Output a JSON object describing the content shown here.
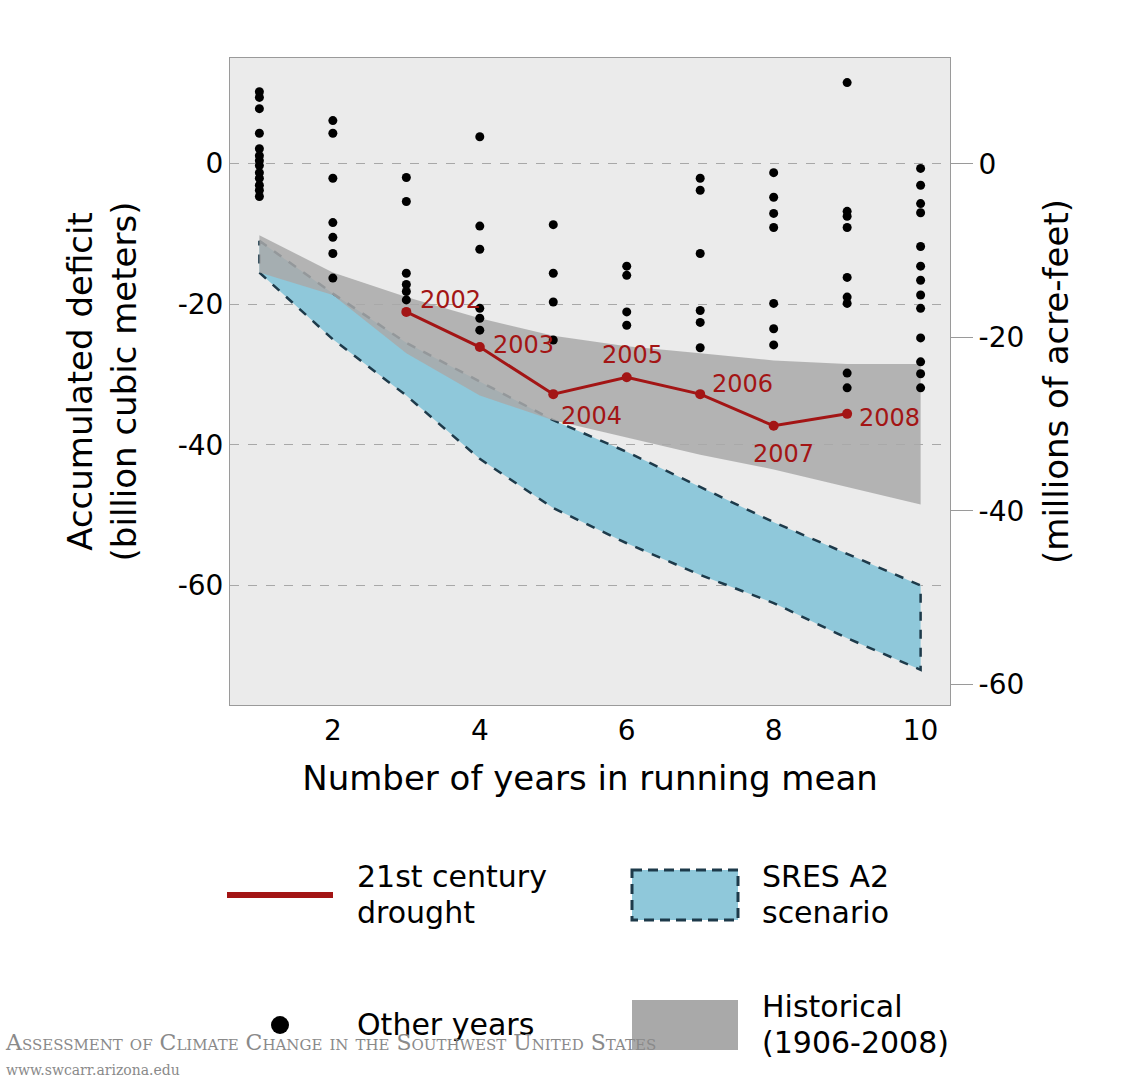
{
  "chart_data": {
    "type": "scatter",
    "x_label": "Number of years in running mean",
    "y_label": [
      "Accumulated deficit",
      "(billion cubic meters)"
    ],
    "y2_label": "(millions of acre-feet)",
    "xlim": [
      0.6,
      10.4
    ],
    "xticks": [
      2,
      4,
      6,
      8,
      10
    ],
    "ylim": [
      -77,
      15
    ],
    "yticks": [
      0,
      -20,
      -40,
      -60
    ],
    "y2lim": [
      -62.4,
      12.2
    ],
    "y2ticks": [
      0,
      -20,
      -40,
      -60
    ],
    "grid": true,
    "legend": "bottom",
    "series": [
      {
        "name": "21st century drought",
        "type": "line",
        "color": "#a31515",
        "marker": "circle",
        "x": [
          3,
          4,
          5,
          6,
          7,
          8,
          9
        ],
        "values": [
          -21.1,
          -26.1,
          -32.8,
          -30.4,
          -32.8,
          -37.3,
          -35.6
        ],
        "labels": [
          "2002",
          "2003",
          "2004",
          "2005",
          "2006",
          "2007",
          "2008"
        ]
      },
      {
        "name": "SRES A2 scenario",
        "type": "band",
        "color": "#8fc8da",
        "line_style": "dashed",
        "x": [
          1,
          2,
          3,
          4,
          5,
          6,
          7,
          8,
          9,
          10
        ],
        "upper": [
          -11,
          -18.5,
          -25.5,
          -31,
          -36.5,
          -41,
          -46,
          -51,
          -55.5,
          -60
        ],
        "lower": [
          -15.5,
          -25,
          -33,
          -42,
          -49,
          -54,
          -58.5,
          -62.5,
          -67.5,
          -72
        ]
      },
      {
        "name": "Other years",
        "type": "scatter",
        "color": "#000000",
        "marker": "circle",
        "x": [
          1,
          1,
          1,
          1,
          1,
          1,
          1,
          1,
          1,
          1,
          1,
          1,
          1,
          2,
          2,
          2,
          2,
          2,
          2,
          2,
          3,
          3,
          3,
          3,
          3,
          3,
          4,
          4,
          4,
          4,
          4,
          4,
          5,
          5,
          5,
          5,
          6,
          6,
          6,
          6,
          7,
          7,
          7,
          7,
          7,
          7,
          8,
          8,
          8,
          8,
          8,
          8,
          8,
          9,
          9,
          9,
          9,
          9,
          9,
          9,
          9,
          9,
          10,
          10,
          10,
          10,
          10,
          10,
          10,
          10,
          10,
          10,
          10,
          10,
          10
        ],
        "values": [
          10.2,
          9.4,
          7.8,
          4.3,
          2.1,
          1.1,
          0.4,
          -0.3,
          -1.3,
          -2.1,
          -3.1,
          -3.8,
          -4.7,
          6.1,
          4.3,
          -2.1,
          -8.4,
          -10.5,
          -12.8,
          -16.3,
          -2.0,
          -5.4,
          -15.6,
          -17.2,
          -18.2,
          -19.4,
          3.8,
          -8.9,
          -12.2,
          -20.6,
          -22.0,
          -23.7,
          -8.7,
          -15.6,
          -19.7,
          -25.1,
          -14.6,
          -15.9,
          -21.1,
          -23.0,
          -2.1,
          -3.8,
          -12.8,
          -20.9,
          -22.6,
          -26.2,
          -1.3,
          -4.8,
          -7.1,
          -9.1,
          -19.9,
          -23.5,
          -25.8,
          11.5,
          -6.8,
          -7.5,
          -9.1,
          -16.2,
          -19.0,
          -19.9,
          -29.8,
          -31.9,
          -0.7,
          -3.1,
          -5.7,
          -7.0,
          -11.8,
          -14.6,
          -16.6,
          -18.7,
          -20.6,
          -24.8,
          -28.2,
          -29.9,
          -31.9
        ]
      },
      {
        "name": "Historical (1906-2008)",
        "type": "band",
        "color": "#a9a9a9",
        "x": [
          1,
          2,
          3,
          4,
          5,
          6,
          7,
          8,
          9,
          10
        ],
        "upper": [
          -10.2,
          -15.5,
          -19,
          -22,
          -24.5,
          -26,
          -27,
          -28,
          -28.5,
          -28.5
        ],
        "lower": [
          -15.5,
          -18.7,
          -27,
          -33,
          -36.5,
          -39,
          -41.4,
          -43.5,
          -46,
          -48.5
        ]
      }
    ],
    "source": [
      "Assessment of Climate Change in the Southwest United States",
      "www.swcarr.arizona.edu"
    ]
  }
}
